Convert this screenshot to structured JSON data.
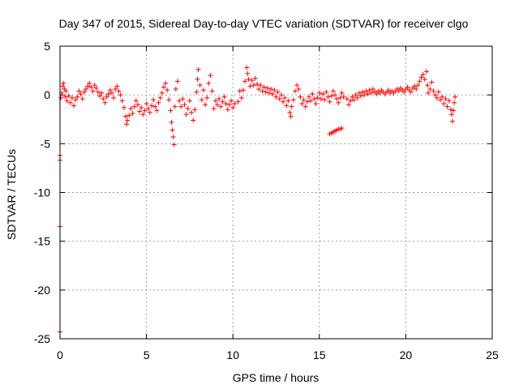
{
  "chart_data": {
    "type": "scatter",
    "title": "Day 347 of 2015, Sidereal Day-to-day VTEC variation (SDTVAR) for receiver clgo",
    "xlabel": "GPS time / hours",
    "ylabel": "SDTVAR / TECUs",
    "xlim": [
      0,
      25
    ],
    "ylim": [
      -25,
      5
    ],
    "xticks": [
      0,
      5,
      10,
      15,
      20,
      25
    ],
    "yticks": [
      5,
      0,
      -5,
      -10,
      -15,
      -20,
      -25
    ],
    "grid": true,
    "marker": "+",
    "series": [
      {
        "name": "SDTVAR",
        "color": "#ff0000",
        "points": [
          [
            0.0,
            -6.2
          ],
          [
            0.0,
            -6.7
          ],
          [
            0.0,
            -13.5
          ],
          [
            0.0,
            -24.3
          ],
          [
            0.05,
            -0.3
          ],
          [
            0.1,
            0.2
          ],
          [
            0.15,
            0.9
          ],
          [
            0.2,
            1.2
          ],
          [
            0.25,
            0.6
          ],
          [
            0.3,
            -0.2
          ],
          [
            0.35,
            0.4
          ],
          [
            0.4,
            -0.6
          ],
          [
            0.5,
            -0.1
          ],
          [
            0.6,
            -0.8
          ],
          [
            0.7,
            -0.3
          ],
          [
            0.8,
            -1.1
          ],
          [
            0.9,
            -0.5
          ],
          [
            1.0,
            -0.2
          ],
          [
            1.1,
            0.4
          ],
          [
            1.2,
            0.1
          ],
          [
            1.3,
            -0.4
          ],
          [
            1.4,
            0.3
          ],
          [
            1.5,
            0.6
          ],
          [
            1.6,
            0.9
          ],
          [
            1.7,
            1.2
          ],
          [
            1.8,
            0.8
          ],
          [
            1.9,
            0.4
          ],
          [
            2.0,
            1.0
          ],
          [
            2.1,
            0.7
          ],
          [
            2.2,
            0.3
          ],
          [
            2.3,
            -0.1
          ],
          [
            2.4,
            0.2
          ],
          [
            2.5,
            -0.4
          ],
          [
            2.6,
            -0.8
          ],
          [
            2.7,
            -0.2
          ],
          [
            2.8,
            0.1
          ],
          [
            2.9,
            0.5
          ],
          [
            3.0,
            0.2
          ],
          [
            3.1,
            -0.3
          ],
          [
            3.2,
            0.6
          ],
          [
            3.3,
            0.9
          ],
          [
            3.4,
            0.4
          ],
          [
            3.5,
            0.0
          ],
          [
            3.6,
            -0.6
          ],
          [
            3.7,
            -1.3
          ],
          [
            3.8,
            -2.2
          ],
          [
            3.85,
            -3.0
          ],
          [
            3.9,
            -2.6
          ],
          [
            4.0,
            -2.1
          ],
          [
            4.1,
            -1.4
          ],
          [
            4.2,
            -1.9
          ],
          [
            4.3,
            -1.2
          ],
          [
            4.4,
            -0.6
          ],
          [
            4.5,
            -1.0
          ],
          [
            4.6,
            -1.7
          ],
          [
            4.7,
            -1.3
          ],
          [
            4.8,
            -2.0
          ],
          [
            4.9,
            -1.6
          ],
          [
            5.0,
            -0.9
          ],
          [
            5.1,
            -1.4
          ],
          [
            5.2,
            -1.8
          ],
          [
            5.3,
            -1.1
          ],
          [
            5.4,
            -0.5
          ],
          [
            5.5,
            -1.2
          ],
          [
            5.6,
            -1.6
          ],
          [
            5.7,
            -0.8
          ],
          [
            5.8,
            -0.3
          ],
          [
            5.9,
            0.2
          ],
          [
            6.0,
            0.8
          ],
          [
            6.1,
            1.2
          ],
          [
            6.2,
            0.5
          ],
          [
            6.3,
            -0.5
          ],
          [
            6.4,
            -1.6
          ],
          [
            6.45,
            -2.8
          ],
          [
            6.5,
            -3.6
          ],
          [
            6.55,
            -4.3
          ],
          [
            6.6,
            -5.1
          ],
          [
            6.65,
            -1.2
          ],
          [
            6.7,
            0.6
          ],
          [
            6.8,
            1.4
          ],
          [
            6.9,
            -0.6
          ],
          [
            7.0,
            -1.2
          ],
          [
            7.1,
            -0.4
          ],
          [
            7.2,
            -1.0
          ],
          [
            7.3,
            -2.0
          ],
          [
            7.4,
            -1.4
          ],
          [
            7.5,
            -0.6
          ],
          [
            7.6,
            -1.8
          ],
          [
            7.7,
            -2.6
          ],
          [
            7.8,
            -1.5
          ],
          [
            7.9,
            0.3
          ],
          [
            7.95,
            1.6
          ],
          [
            8.0,
            2.6
          ],
          [
            8.1,
            1.0
          ],
          [
            8.2,
            -0.5
          ],
          [
            8.3,
            0.5
          ],
          [
            8.4,
            -1.0
          ],
          [
            8.5,
            -0.3
          ],
          [
            8.6,
            1.2
          ],
          [
            8.7,
            2.0
          ],
          [
            8.8,
            0.4
          ],
          [
            8.9,
            -1.4
          ],
          [
            9.0,
            -0.6
          ],
          [
            9.1,
            -1.0
          ],
          [
            9.2,
            -0.4
          ],
          [
            9.3,
            -1.2
          ],
          [
            9.4,
            -0.7
          ],
          [
            9.5,
            -0.2
          ],
          [
            9.6,
            -0.9
          ],
          [
            9.7,
            -1.5
          ],
          [
            9.8,
            -1.0
          ],
          [
            9.9,
            -0.6
          ],
          [
            10.0,
            -1.3
          ],
          [
            10.1,
            -0.9
          ],
          [
            10.3,
            -0.7
          ],
          [
            10.4,
            0.4
          ],
          [
            10.5,
            -0.3
          ],
          [
            10.6,
            0.5
          ],
          [
            10.7,
            1.4
          ],
          [
            10.8,
            2.8
          ],
          [
            10.85,
            2.2
          ],
          [
            10.9,
            1.6
          ],
          [
            11.0,
            0.9
          ],
          [
            11.1,
            1.5
          ],
          [
            11.2,
            1.0
          ],
          [
            11.3,
            1.7
          ],
          [
            11.4,
            1.1
          ],
          [
            11.5,
            0.6
          ],
          [
            11.6,
            1.0
          ],
          [
            11.7,
            0.4
          ],
          [
            11.8,
            0.8
          ],
          [
            11.9,
            0.3
          ],
          [
            12.0,
            0.7
          ],
          [
            12.1,
            0.2
          ],
          [
            12.2,
            0.6
          ],
          [
            12.3,
            0.1
          ],
          [
            12.4,
            0.5
          ],
          [
            12.5,
            -0.2
          ],
          [
            12.6,
            0.3
          ],
          [
            12.7,
            -0.4
          ],
          [
            12.8,
            0.0
          ],
          [
            12.9,
            -0.7
          ],
          [
            13.0,
            -0.3
          ],
          [
            13.1,
            -1.1
          ],
          [
            13.2,
            -0.6
          ],
          [
            13.3,
            -1.8
          ],
          [
            13.35,
            -2.2
          ],
          [
            13.4,
            -1.2
          ],
          [
            13.5,
            -0.5
          ],
          [
            13.6,
            0.4
          ],
          [
            13.7,
            1.0
          ],
          [
            13.8,
            0.6
          ],
          [
            13.9,
            -0.2
          ],
          [
            14.0,
            -0.9
          ],
          [
            14.1,
            -0.5
          ],
          [
            14.2,
            -1.2
          ],
          [
            14.3,
            -0.7
          ],
          [
            14.4,
            -0.2
          ],
          [
            14.5,
            -0.6
          ],
          [
            14.6,
            0.1
          ],
          [
            14.7,
            -0.4
          ],
          [
            14.8,
            -0.9
          ],
          [
            14.9,
            -0.3
          ],
          [
            15.0,
            0.2
          ],
          [
            15.1,
            -0.4
          ],
          [
            15.2,
            0.1
          ],
          [
            15.3,
            -0.5
          ],
          [
            15.4,
            0.3
          ],
          [
            15.5,
            -0.2
          ],
          [
            15.6,
            -0.7
          ],
          [
            15.7,
            -0.1
          ],
          [
            15.8,
            0.4
          ],
          [
            15.9,
            0.0
          ],
          [
            16.0,
            -0.4
          ],
          [
            16.1,
            -0.8
          ],
          [
            16.2,
            -0.3
          ],
          [
            16.3,
            0.2
          ],
          [
            16.4,
            -0.2
          ],
          [
            15.6,
            -4.0
          ],
          [
            15.7,
            -3.9
          ],
          [
            15.8,
            -3.8
          ],
          [
            15.9,
            -3.7
          ],
          [
            16.0,
            -3.6
          ],
          [
            16.1,
            -3.5
          ],
          [
            16.2,
            -3.5
          ],
          [
            16.3,
            -3.4
          ],
          [
            16.6,
            -0.4
          ],
          [
            16.7,
            -1.0
          ],
          [
            16.8,
            -0.6
          ],
          [
            16.9,
            -0.2
          ],
          [
            17.0,
            -0.5
          ],
          [
            17.1,
            0.0
          ],
          [
            17.2,
            -0.3
          ],
          [
            17.3,
            0.2
          ],
          [
            17.4,
            -0.1
          ],
          [
            17.5,
            0.3
          ],
          [
            17.6,
            0.0
          ],
          [
            17.7,
            0.4
          ],
          [
            17.8,
            0.1
          ],
          [
            17.9,
            0.5
          ],
          [
            18.0,
            0.2
          ],
          [
            18.1,
            0.6
          ],
          [
            18.2,
            0.3
          ],
          [
            18.3,
            0.1
          ],
          [
            18.4,
            0.4
          ],
          [
            18.5,
            0.2
          ],
          [
            18.6,
            0.5
          ],
          [
            18.7,
            0.3
          ],
          [
            18.8,
            0.1
          ],
          [
            18.9,
            0.3
          ],
          [
            19.0,
            0.5
          ],
          [
            19.1,
            0.2
          ],
          [
            19.2,
            0.4
          ],
          [
            19.3,
            0.2
          ],
          [
            19.4,
            0.4
          ],
          [
            19.5,
            0.6
          ],
          [
            19.6,
            0.4
          ],
          [
            19.7,
            0.7
          ],
          [
            19.8,
            0.5
          ],
          [
            19.9,
            0.3
          ],
          [
            20.0,
            0.6
          ],
          [
            20.1,
            0.8
          ],
          [
            20.2,
            0.5
          ],
          [
            20.3,
            0.3
          ],
          [
            20.4,
            0.7
          ],
          [
            20.5,
            0.9
          ],
          [
            20.6,
            0.6
          ],
          [
            20.7,
            1.0
          ],
          [
            20.8,
            1.4
          ],
          [
            20.9,
            1.8
          ],
          [
            21.0,
            2.1
          ],
          [
            21.1,
            1.6
          ],
          [
            21.2,
            2.4
          ],
          [
            21.25,
            1.0
          ],
          [
            21.3,
            0.2
          ],
          [
            21.4,
            0.6
          ],
          [
            21.5,
            1.3
          ],
          [
            21.6,
            0.4
          ],
          [
            21.7,
            0.0
          ],
          [
            21.8,
            -0.3
          ],
          [
            21.9,
            0.3
          ],
          [
            22.0,
            -0.5
          ],
          [
            22.1,
            -0.2
          ],
          [
            22.2,
            -0.9
          ],
          [
            22.3,
            -0.4
          ],
          [
            22.4,
            -1.2
          ],
          [
            22.5,
            -0.6
          ],
          [
            22.6,
            -1.5
          ],
          [
            22.65,
            -2.0
          ],
          [
            22.7,
            -2.7
          ],
          [
            22.75,
            -1.6
          ],
          [
            22.8,
            -0.8
          ],
          [
            22.85,
            -0.2
          ]
        ]
      }
    ]
  }
}
